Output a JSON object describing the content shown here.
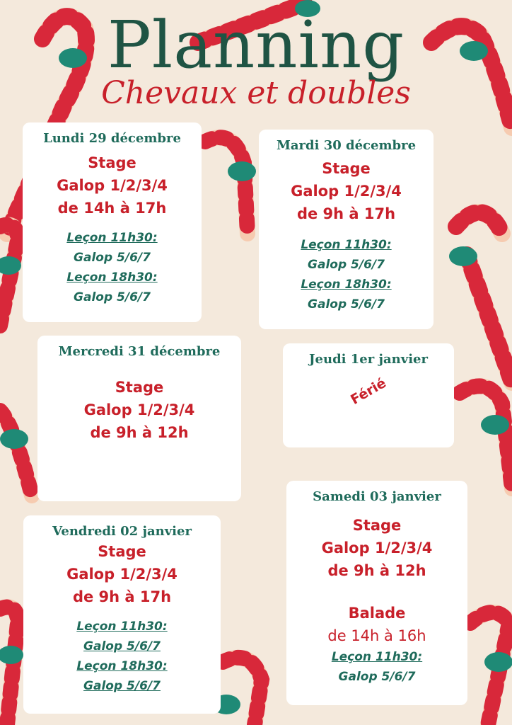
{
  "title": "Planning",
  "subtitle": "Chevaux et doubles",
  "colors": {
    "green": "#1f5444",
    "red": "#c8202a",
    "background": "#f4e9dc"
  },
  "days": [
    {
      "day": "Lundi 29 décembre",
      "lines": [
        "Stage",
        "Galop 1/2/3/4",
        "de 14h à 17h"
      ],
      "lessons": [
        {
          "label": "Leçon 11h30:",
          "level": "Galop 5/6/7"
        },
        {
          "label": "Leçon 18h30:",
          "level": "Galop 5/6/7"
        }
      ]
    },
    {
      "day": "Mardi 30 décembre",
      "lines": [
        "Stage",
        "Galop 1/2/3/4",
        "de 9h à 17h"
      ],
      "lessons": [
        {
          "label": "Leçon 11h30:",
          "level": "Galop 5/6/7"
        },
        {
          "label": "Leçon 18h30:",
          "level": "Galop 5/6/7"
        }
      ]
    },
    {
      "day": "Mercredi 31 décembre",
      "lines": [
        "Stage",
        "Galop 1/2/3/4",
        "de 9h à 12h"
      ]
    },
    {
      "day": "Jeudi 1er janvier",
      "note": "Férié"
    },
    {
      "day": "Vendredi 02 janvier",
      "lines": [
        "Stage",
        "Galop 1/2/3/4",
        "de 9h à 17h"
      ],
      "lessons": [
        {
          "label": "Leçon 11h30:",
          "level": "Galop 5/6/7"
        },
        {
          "label": "Leçon 18h30:",
          "level": "Galop 5/6/7"
        }
      ]
    },
    {
      "day": "Samedi 03 janvier",
      "lines": [
        "Stage",
        "Galop 1/2/3/4",
        "de 9h à 12h"
      ],
      "extra": {
        "title": "Balade",
        "time": "de 14h à 16h"
      },
      "lessons": [
        {
          "label": "Leçon 11h30:",
          "level": "Galop 5/6/7"
        }
      ]
    }
  ]
}
